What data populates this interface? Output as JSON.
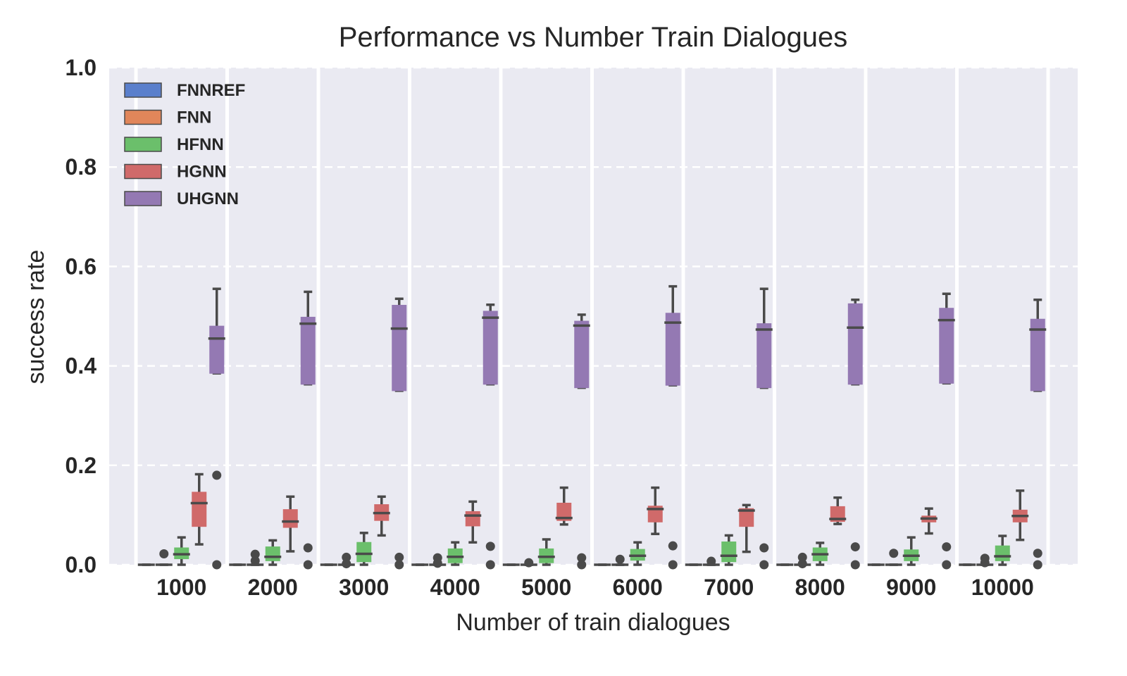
{
  "chart_data": {
    "type": "box",
    "title": "Performance vs Number Train Dialogues",
    "xlabel": "Number of train dialogues",
    "ylabel": "success rate",
    "ylim": [
      0,
      1.0
    ],
    "yticks": [
      "0.0",
      "0.2",
      "0.4",
      "0.6",
      "0.8",
      "1.0"
    ],
    "categories": [
      "1000",
      "2000",
      "3000",
      "4000",
      "5000",
      "6000",
      "7000",
      "8000",
      "9000",
      "10000"
    ],
    "grid": true,
    "legend_position": "top-left",
    "series": [
      {
        "name": "FNNREF",
        "color": "#5a7fcc",
        "boxes": [
          {
            "min": 0,
            "q1": 0,
            "median": 0,
            "q3": 0,
            "max": 0,
            "outliers": []
          },
          {
            "min": 0,
            "q1": 0,
            "median": 0,
            "q3": 0,
            "max": 0,
            "outliers": []
          },
          {
            "min": 0,
            "q1": 0,
            "median": 0,
            "q3": 0,
            "max": 0,
            "outliers": []
          },
          {
            "min": 0,
            "q1": 0,
            "median": 0,
            "q3": 0,
            "max": 0,
            "outliers": []
          },
          {
            "min": 0,
            "q1": 0,
            "median": 0,
            "q3": 0,
            "max": 0,
            "outliers": []
          },
          {
            "min": 0,
            "q1": 0,
            "median": 0,
            "q3": 0,
            "max": 0,
            "outliers": []
          },
          {
            "min": 0,
            "q1": 0,
            "median": 0,
            "q3": 0,
            "max": 0,
            "outliers": []
          },
          {
            "min": 0,
            "q1": 0,
            "median": 0,
            "q3": 0,
            "max": 0,
            "outliers": []
          },
          {
            "min": 0,
            "q1": 0,
            "median": 0,
            "q3": 0,
            "max": 0,
            "outliers": []
          },
          {
            "min": 0,
            "q1": 0,
            "median": 0,
            "q3": 0,
            "max": 0,
            "outliers": []
          }
        ]
      },
      {
        "name": "FNN",
        "color": "#e1865a",
        "boxes": [
          {
            "min": 0,
            "q1": 0,
            "median": 0,
            "q3": 0,
            "max": 0,
            "outliers": [
              0.022
            ]
          },
          {
            "min": 0,
            "q1": 0,
            "median": 0,
            "q3": 0,
            "max": 0,
            "outliers": [
              0.008,
              0.021
            ]
          },
          {
            "min": 0,
            "q1": 0,
            "median": 0,
            "q3": 0,
            "max": 0,
            "outliers": [
              0.002,
              0.015
            ]
          },
          {
            "min": 0,
            "q1": 0,
            "median": 0,
            "q3": 0,
            "max": 0,
            "outliers": [
              0.003,
              0.014
            ]
          },
          {
            "min": 0,
            "q1": 0,
            "median": 0,
            "q3": 0,
            "max": 0,
            "outliers": [
              0.004
            ]
          },
          {
            "min": 0,
            "q1": 0,
            "median": 0,
            "q3": 0,
            "max": 0,
            "outliers": [
              0.011
            ]
          },
          {
            "min": 0,
            "q1": 0,
            "median": 0,
            "q3": 0,
            "max": 0,
            "outliers": [
              0.007
            ]
          },
          {
            "min": 0,
            "q1": 0,
            "median": 0,
            "q3": 0,
            "max": 0,
            "outliers": [
              0.002,
              0.015
            ]
          },
          {
            "min": 0,
            "q1": 0,
            "median": 0,
            "q3": 0,
            "max": 0,
            "outliers": [
              0.023
            ]
          },
          {
            "min": 0,
            "q1": 0,
            "median": 0,
            "q3": 0,
            "max": 0,
            "outliers": [
              0.004,
              0.013
            ]
          }
        ]
      },
      {
        "name": "HFNN",
        "color": "#6bbf6b",
        "boxes": [
          {
            "min": 0.0,
            "q1": 0.012,
            "median": 0.021,
            "q3": 0.034,
            "max": 0.055,
            "outliers": []
          },
          {
            "min": 0.0,
            "q1": 0.008,
            "median": 0.016,
            "q3": 0.036,
            "max": 0.049,
            "outliers": []
          },
          {
            "min": 0.0,
            "q1": 0.006,
            "median": 0.022,
            "q3": 0.045,
            "max": 0.064,
            "outliers": []
          },
          {
            "min": 0.0,
            "q1": 0.004,
            "median": 0.016,
            "q3": 0.032,
            "max": 0.045,
            "outliers": []
          },
          {
            "min": 0.0,
            "q1": 0.004,
            "median": 0.016,
            "q3": 0.032,
            "max": 0.051,
            "outliers": []
          },
          {
            "min": 0.0,
            "q1": 0.009,
            "median": 0.018,
            "q3": 0.031,
            "max": 0.045,
            "outliers": []
          },
          {
            "min": 0.0,
            "q1": 0.006,
            "median": 0.018,
            "q3": 0.046,
            "max": 0.059,
            "outliers": []
          },
          {
            "min": 0.0,
            "q1": 0.008,
            "median": 0.021,
            "q3": 0.034,
            "max": 0.044,
            "outliers": []
          },
          {
            "min": 0.0,
            "q1": 0.008,
            "median": 0.018,
            "q3": 0.03,
            "max": 0.055,
            "outliers": []
          },
          {
            "min": 0.0,
            "q1": 0.008,
            "median": 0.017,
            "q3": 0.038,
            "max": 0.058,
            "outliers": []
          }
        ]
      },
      {
        "name": "HGNN",
        "color": "#d06a6a",
        "boxes": [
          {
            "min": 0.041,
            "q1": 0.077,
            "median": 0.124,
            "q3": 0.146,
            "max": 0.182,
            "outliers": []
          },
          {
            "min": 0.027,
            "q1": 0.075,
            "median": 0.087,
            "q3": 0.111,
            "max": 0.137,
            "outliers": []
          },
          {
            "min": 0.059,
            "q1": 0.089,
            "median": 0.104,
            "q3": 0.121,
            "max": 0.137,
            "outliers": []
          },
          {
            "min": 0.045,
            "q1": 0.078,
            "median": 0.099,
            "q3": 0.107,
            "max": 0.127,
            "outliers": []
          },
          {
            "min": 0.081,
            "q1": 0.089,
            "median": 0.094,
            "q3": 0.124,
            "max": 0.155,
            "outliers": []
          },
          {
            "min": 0.062,
            "q1": 0.086,
            "median": 0.112,
            "q3": 0.118,
            "max": 0.155,
            "outliers": []
          },
          {
            "min": 0.026,
            "q1": 0.077,
            "median": 0.109,
            "q3": 0.113,
            "max": 0.12,
            "outliers": []
          },
          {
            "min": 0.082,
            "q1": 0.087,
            "median": 0.092,
            "q3": 0.117,
            "max": 0.135,
            "outliers": []
          },
          {
            "min": 0.063,
            "q1": 0.086,
            "median": 0.093,
            "q3": 0.098,
            "max": 0.113,
            "outliers": []
          },
          {
            "min": 0.05,
            "q1": 0.086,
            "median": 0.098,
            "q3": 0.11,
            "max": 0.149,
            "outliers": []
          }
        ]
      },
      {
        "name": "UHGNN",
        "color": "#9479b3",
        "boxes": [
          {
            "min": 0.385,
            "q1": 0.385,
            "median": 0.455,
            "q3": 0.48,
            "max": 0.555,
            "outliers": [
              0.0,
              0.18
            ]
          },
          {
            "min": 0.363,
            "q1": 0.363,
            "median": 0.485,
            "q3": 0.498,
            "max": 0.549,
            "outliers": [
              0.0,
              0.034
            ]
          },
          {
            "min": 0.35,
            "q1": 0.35,
            "median": 0.475,
            "q3": 0.522,
            "max": 0.535,
            "outliers": [
              0.0,
              0.015
            ]
          },
          {
            "min": 0.363,
            "q1": 0.363,
            "median": 0.497,
            "q3": 0.51,
            "max": 0.523,
            "outliers": [
              0.0,
              0.037
            ]
          },
          {
            "min": 0.356,
            "q1": 0.356,
            "median": 0.481,
            "q3": 0.49,
            "max": 0.503,
            "outliers": [
              0.0,
              0.014
            ]
          },
          {
            "min": 0.361,
            "q1": 0.361,
            "median": 0.487,
            "q3": 0.506,
            "max": 0.56,
            "outliers": [
              0.0,
              0.038
            ]
          },
          {
            "min": 0.356,
            "q1": 0.356,
            "median": 0.473,
            "q3": 0.485,
            "max": 0.555,
            "outliers": [
              0.0,
              0.034
            ]
          },
          {
            "min": 0.363,
            "q1": 0.363,
            "median": 0.477,
            "q3": 0.525,
            "max": 0.533,
            "outliers": [
              0.0,
              0.036
            ]
          },
          {
            "min": 0.365,
            "q1": 0.365,
            "median": 0.492,
            "q3": 0.516,
            "max": 0.545,
            "outliers": [
              0.0,
              0.036
            ]
          },
          {
            "min": 0.35,
            "q1": 0.35,
            "median": 0.473,
            "q3": 0.494,
            "max": 0.533,
            "outliers": [
              0.0,
              0.023
            ]
          }
        ]
      }
    ]
  }
}
